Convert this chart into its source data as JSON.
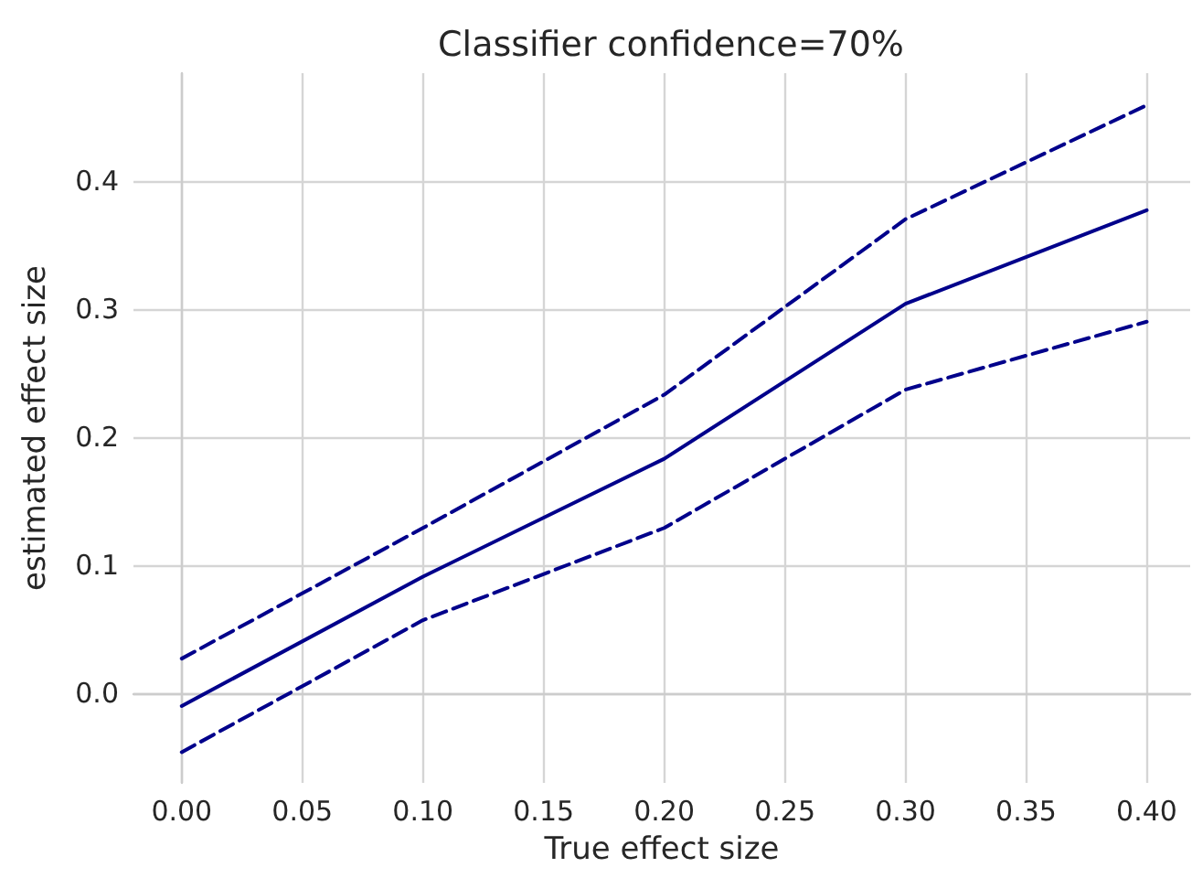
{
  "chart_data": {
    "type": "line",
    "title": "Classifier confidence=70%",
    "xlabel": "True effect size",
    "ylabel": "estimated effect size",
    "x": [
      0.0,
      0.1,
      0.2,
      0.3,
      0.4
    ],
    "series": [
      {
        "color": "#00008b",
        "line_style": "solid",
        "values": [
          -0.01,
          0.091,
          0.183,
          0.304,
          0.377
        ]
      },
      {
        "color": "#00008b",
        "line_style": "dashed",
        "values": [
          0.027,
          0.129,
          0.233,
          0.37,
          0.459
        ]
      },
      {
        "color": "#00008b",
        "line_style": "dashed",
        "values": [
          -0.046,
          0.057,
          0.129,
          0.237,
          0.29
        ]
      }
    ],
    "xlim": [
      -0.02,
      0.418
    ],
    "xticks": [
      {
        "value": 0,
        "label": "0.00"
      },
      0.05,
      {
        "value": 0.1,
        "label": "0.10"
      },
      0.15,
      {
        "value": 0.2,
        "label": "0.20"
      },
      0.25,
      {
        "value": 0.3,
        "label": "0.30"
      },
      0.35,
      {
        "value": 0.4,
        "label": "0.40"
      }
    ],
    "ylim": [
      -0.07,
      0.484
    ],
    "yticks": [
      {
        "value": 0,
        "label": "0.0"
      },
      0.1,
      0.2,
      0.3,
      0.4
    ],
    "grid": true,
    "marker": "none"
  }
}
